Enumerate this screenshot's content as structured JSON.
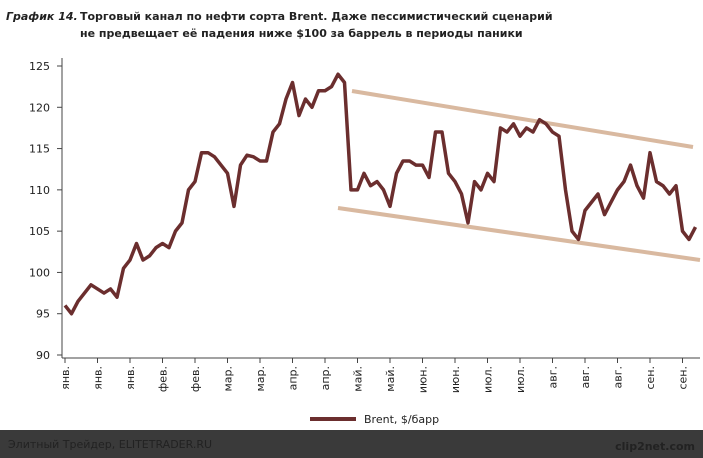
{
  "chart_data": {
    "type": "line",
    "title_label": "График 14.",
    "title_lines": [
      "Торговый канал по нефти сорта Brent. Даже пессимистический сценарий",
      "не предвещает её падения ниже $100 за баррель в периоды паники"
    ],
    "categories": [
      "янв.",
      null,
      null,
      null,
      null,
      "янв.",
      null,
      null,
      null,
      null,
      "янв.",
      null,
      null,
      null,
      null,
      "фев.",
      null,
      null,
      null,
      null,
      "фев.",
      null,
      null,
      null,
      null,
      "мар.",
      null,
      null,
      null,
      null,
      "мар.",
      null,
      null,
      null,
      null,
      "апр.",
      null,
      null,
      null,
      null,
      "апр.",
      null,
      null,
      null,
      null,
      "май.",
      null,
      null,
      null,
      null,
      "май.",
      null,
      null,
      null,
      null,
      "июн.",
      null,
      null,
      null,
      null,
      "июн.",
      null,
      null,
      null,
      null,
      "июл.",
      null,
      null,
      null,
      null,
      "июл.",
      null,
      null,
      null,
      null,
      "авг.",
      null,
      null,
      null,
      null,
      "авг.",
      null,
      null,
      null,
      null,
      "авг.",
      null,
      null,
      null,
      null,
      "сен.",
      null,
      null,
      null,
      null,
      "сен.",
      null,
      null
    ],
    "series": [
      {
        "name": "Brent, $/барр",
        "color": "#6b2e2e",
        "values": [
          96,
          95,
          96.5,
          97.5,
          98.5,
          98,
          97.5,
          98,
          97,
          100.5,
          101.5,
          103.5,
          101.5,
          102,
          103,
          103.5,
          103,
          105,
          106,
          110,
          111,
          114.5,
          114.5,
          114,
          113,
          112,
          108,
          113,
          114.2,
          114,
          113.5,
          113.5,
          117,
          118,
          121,
          123,
          119,
          121,
          120,
          122,
          122,
          122.5,
          124,
          123,
          110,
          110,
          112,
          110.5,
          111,
          110,
          108,
          112,
          113.5,
          113.5,
          113,
          113,
          111.5,
          117,
          117,
          112,
          111,
          109.5,
          106,
          111,
          110,
          112,
          111,
          117.5,
          117,
          118,
          116.5,
          117.5,
          117,
          118.5,
          118,
          117,
          116.5,
          110,
          105,
          104,
          107.5,
          108.5,
          109.5,
          107,
          108.5,
          110,
          111,
          113,
          110.5,
          109,
          114.5,
          111,
          110.5,
          109.5,
          110.5,
          105,
          104,
          105.5
        ]
      }
    ],
    "ylim": [
      90,
      125
    ],
    "yticks": [
      90,
      95,
      100,
      105,
      110,
      115,
      120,
      125
    ],
    "footer": "Элитный Трейдер, ELITETRADER.RU",
    "watermark": "clip2net.com"
  }
}
